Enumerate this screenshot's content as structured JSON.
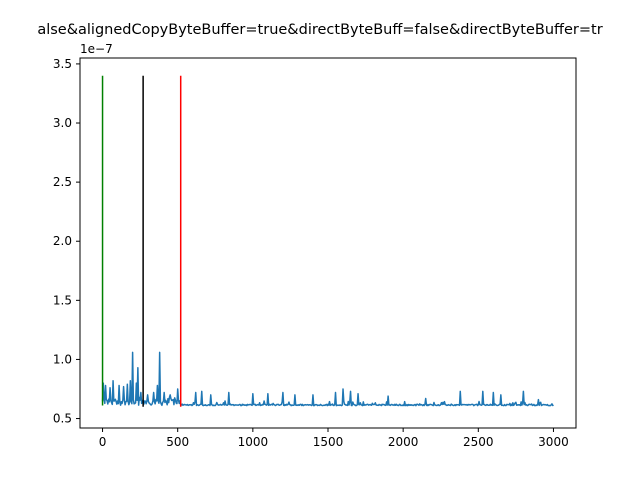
{
  "chart_data": {
    "type": "line",
    "title": "alse&alignedCopyByteBuffer=true&directByteBuff=false&directByteBuffer=tr",
    "offset_text": "1e−7",
    "xlim": [
      -150,
      3150
    ],
    "ylim": [
      0.42,
      3.55
    ],
    "y_scale_note": "1e-7",
    "x_ticks": [
      0,
      500,
      1000,
      1500,
      2000,
      2500,
      3000
    ],
    "x_tick_labels": [
      "0",
      "500",
      "1000",
      "1500",
      "2000",
      "2500",
      "3000"
    ],
    "y_ticks": [
      0.5,
      1.0,
      1.5,
      2.0,
      2.5,
      3.0,
      3.5
    ],
    "y_tick_labels": [
      "0.5",
      "1.0",
      "1.5",
      "2.0",
      "2.5",
      "3.0",
      "3.5"
    ],
    "grid": false,
    "vertical_lines": [
      {
        "x": 0,
        "y0": 0.61,
        "y1": 3.4,
        "color": "#008000"
      },
      {
        "x": 270,
        "y0": 0.6,
        "y1": 3.4,
        "color": "#000000"
      },
      {
        "x": 520,
        "y0": 0.6,
        "y1": 3.4,
        "color": "#ff0000"
      }
    ],
    "series": [
      {
        "color": "#1f77b4",
        "baseline": 0.615,
        "spikes": [
          {
            "x": 5,
            "y": 0.8
          },
          {
            "x": 20,
            "y": 0.78
          },
          {
            "x": 50,
            "y": 0.76
          },
          {
            "x": 70,
            "y": 0.82
          },
          {
            "x": 110,
            "y": 0.78
          },
          {
            "x": 140,
            "y": 0.77
          },
          {
            "x": 165,
            "y": 0.79
          },
          {
            "x": 185,
            "y": 0.82
          },
          {
            "x": 200,
            "y": 1.06
          },
          {
            "x": 225,
            "y": 0.8
          },
          {
            "x": 235,
            "y": 0.93
          },
          {
            "x": 255,
            "y": 0.72
          },
          {
            "x": 300,
            "y": 0.7
          },
          {
            "x": 340,
            "y": 0.72
          },
          {
            "x": 365,
            "y": 0.78
          },
          {
            "x": 380,
            "y": 1.06
          },
          {
            "x": 410,
            "y": 0.72
          },
          {
            "x": 450,
            "y": 0.7
          },
          {
            "x": 500,
            "y": 0.75
          },
          {
            "x": 620,
            "y": 0.72
          },
          {
            "x": 660,
            "y": 0.73
          },
          {
            "x": 720,
            "y": 0.7
          },
          {
            "x": 840,
            "y": 0.72
          },
          {
            "x": 1000,
            "y": 0.71
          },
          {
            "x": 1100,
            "y": 0.71
          },
          {
            "x": 1200,
            "y": 0.72
          },
          {
            "x": 1280,
            "y": 0.7
          },
          {
            "x": 1400,
            "y": 0.7
          },
          {
            "x": 1550,
            "y": 0.72
          },
          {
            "x": 1600,
            "y": 0.75
          },
          {
            "x": 1650,
            "y": 0.73
          },
          {
            "x": 1700,
            "y": 0.71
          },
          {
            "x": 1900,
            "y": 0.69
          },
          {
            "x": 2150,
            "y": 0.67
          },
          {
            "x": 2380,
            "y": 0.73
          },
          {
            "x": 2530,
            "y": 0.73
          },
          {
            "x": 2600,
            "y": 0.72
          },
          {
            "x": 2650,
            "y": 0.7
          },
          {
            "x": 2800,
            "y": 0.73
          },
          {
            "x": 2900,
            "y": 0.66
          }
        ],
        "x_end": 3000
      }
    ]
  }
}
